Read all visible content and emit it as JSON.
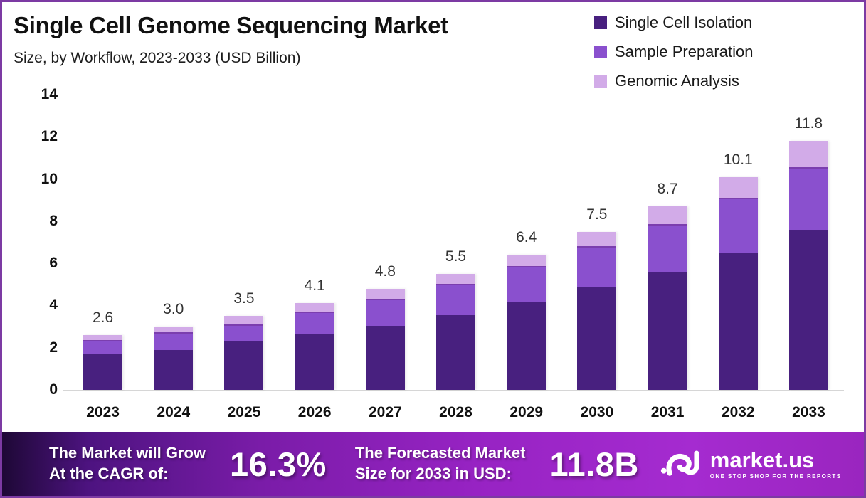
{
  "frame": {
    "border_color": "#7c3aa3",
    "background": "#ffffff"
  },
  "chart_data": {
    "type": "bar",
    "stacked": true,
    "title": "Single Cell Genome Sequencing Market",
    "subtitle": "Size, by Workflow, 2023-2033 (USD Billion)",
    "unit": "USD Billion",
    "categories": [
      "2023",
      "2024",
      "2025",
      "2026",
      "2027",
      "2028",
      "2029",
      "2030",
      "2031",
      "2032",
      "2033"
    ],
    "series": [
      {
        "name": "Single Cell Isolation",
        "key": "single-cell-isolation",
        "color": "#48207f",
        "values": [
          1.7,
          1.9,
          2.3,
          2.65,
          3.05,
          3.55,
          4.15,
          4.85,
          5.6,
          6.5,
          7.6
        ]
      },
      {
        "name": "Sample Preparation",
        "key": "sample-preparation",
        "color": "#8a50ce",
        "values": [
          0.6,
          0.75,
          0.75,
          1.0,
          1.2,
          1.4,
          1.65,
          1.9,
          2.2,
          2.55,
          2.9
        ]
      },
      {
        "name": "Genomic Analysis",
        "key": "genomic-analysis",
        "color": "#d2abe8",
        "values": [
          0.3,
          0.35,
          0.45,
          0.45,
          0.55,
          0.55,
          0.6,
          0.75,
          0.9,
          1.05,
          1.3
        ]
      }
    ],
    "totals": [
      2.6,
      3.0,
      3.5,
      4.1,
      4.8,
      5.5,
      6.4,
      7.5,
      8.7,
      10.1,
      11.8
    ],
    "total_labels": [
      "2.6",
      "3.0",
      "3.5",
      "4.1",
      "4.8",
      "5.5",
      "6.4",
      "7.5",
      "8.7",
      "10.1",
      "11.8"
    ],
    "ylim": [
      0,
      14
    ],
    "yticks": [
      0,
      2,
      4,
      6,
      8,
      10,
      12,
      14
    ],
    "grid": false,
    "legend_position": "top-right"
  },
  "footer": {
    "cagr_line1": "The Market will Grow",
    "cagr_line2": "At the CAGR of:",
    "cagr_value": "16.3%",
    "forecast_line1": "The Forecasted Market",
    "forecast_line2": "Size for 2033 in USD:",
    "forecast_value": "11.8B",
    "logo_text": "market.us",
    "logo_tagline": "ONE STOP SHOP FOR THE REPORTS",
    "gradient": [
      "#1e0836",
      "#7a1ca8",
      "#a52bd0",
      "#9a25bf"
    ]
  }
}
